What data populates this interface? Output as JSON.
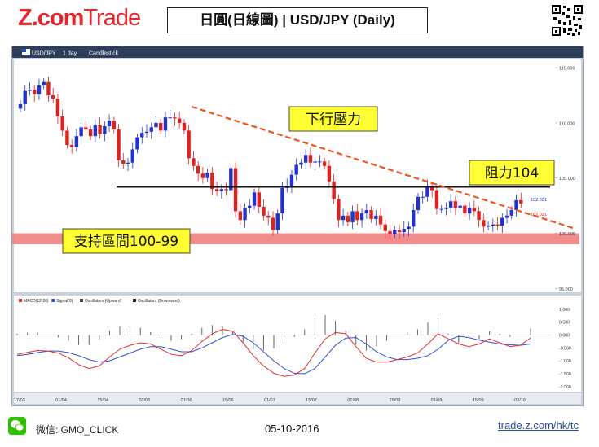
{
  "brand": {
    "logo_main": "Z.com",
    "logo_sub": "Trade"
  },
  "header": {
    "title": "日圓(日線圖) | USD/JPY (Daily)"
  },
  "toolbar": {
    "symbol": "USD/JPY",
    "interval": "1 day",
    "style": "Candlestick"
  },
  "footer": {
    "wechat": "微信: GMO_CLICK",
    "date": "05-10-2016",
    "url": "trade.z.com/hk/tc"
  },
  "colors": {
    "up": "#2233cc",
    "down": "#dd2222",
    "resistance_line": "#ee5522",
    "support_zone": "#f08080",
    "annotation_bg": "#ffff33",
    "macd": "#e03030",
    "signal": "#3050d0"
  },
  "chart_data": [
    {
      "type": "candlestick",
      "symbol": "USD/JPY",
      "ylim": [
        94.8,
        115.6
      ],
      "yticks": [
        "115.000",
        "110.000",
        "105.000",
        "100.000",
        "95.000"
      ],
      "xticks": [
        "17/03",
        "01/04",
        "15/04",
        "02/05",
        "01/06",
        "15/06",
        "01/07",
        "15/07",
        "01/08",
        "15/08",
        "01/09",
        "15/09",
        "03/10"
      ],
      "last_prices": [
        "102.831",
        "102.021"
      ],
      "annotations": [
        "下行壓力",
        "阻力104",
        "支持區間100-99"
      ],
      "resistance": 104.2,
      "support_zone": [
        99,
        100
      ],
      "closes": [
        111.7,
        112.9,
        113.0,
        112.6,
        113.4,
        113.7,
        112.5,
        112.2,
        110.6,
        109.3,
        108.0,
        107.8,
        108.8,
        109.6,
        109.4,
        108.8,
        109.8,
        109.0,
        109.7,
        110.2,
        109.4,
        106.6,
        106.3,
        106.4,
        107.6,
        108.7,
        109.1,
        109.2,
        109.6,
        110.0,
        109.3,
        110.5,
        110.5,
        110.4,
        110.0,
        109.3,
        106.8,
        106.1,
        105.4,
        105.0,
        105.5,
        104.0,
        103.8,
        104.0,
        103.9,
        105.9,
        102.0,
        101.2,
        102.3,
        102.5,
        103.7,
        102.4,
        101.6,
        101.4,
        100.3,
        101.8,
        104.1,
        104.3,
        105.3,
        106.2,
        106.4,
        107.1,
        106.4,
        106.5,
        106.5,
        106.1,
        104.7,
        103.1,
        101.2,
        101.6,
        101.0,
        102.0,
        101.2,
        101.8,
        102.1,
        101.3,
        101.6,
        100.8,
        100.2,
        99.9,
        100.3,
        100.1,
        100.4,
        100.6,
        102.1,
        103.3,
        103.3,
        104.2,
        103.9,
        102.2,
        102.2,
        102.3,
        102.9,
        102.3,
        102.5,
        101.8,
        102.3,
        102.0,
        101.2,
        100.6,
        100.7,
        100.8,
        100.7,
        101.4,
        101.6,
        102.1,
        103.0,
        102.7
      ]
    },
    {
      "type": "line",
      "title": "MACD",
      "legend": [
        "MACD(12,26)",
        "Signal(9)",
        "Oscillators (Upward)",
        "Oscillators (Downward)"
      ],
      "ylim": [
        -2.1,
        1.15
      ],
      "yticks": [
        "1.000",
        "0.500",
        "0.000",
        "-0.500",
        "-1.000",
        "-1.500",
        "-2.000"
      ],
      "series": [
        {
          "name": "MACD(12,26)",
          "values": [
            -0.75,
            -0.67,
            -0.6,
            -0.62,
            -0.7,
            -0.88,
            -1.15,
            -1.3,
            -1.2,
            -0.85,
            -0.55,
            -0.4,
            -0.3,
            -0.35,
            -0.55,
            -0.75,
            -0.8,
            -0.6,
            -0.25,
            0.05,
            0.22,
            0.15,
            -0.3,
            -0.8,
            -1.2,
            -1.48,
            -1.6,
            -1.55,
            -1.3,
            -0.7,
            -0.15,
            0.1,
            0.05,
            -0.45,
            -0.9,
            -1.05,
            -1.05,
            -0.95,
            -0.85,
            -0.7,
            -0.35,
            0.05,
            -0.15,
            -0.35,
            -0.45,
            -0.35,
            -0.15,
            -0.3,
            -0.45,
            -0.4,
            -0.12
          ]
        },
        {
          "name": "Signal(9)",
          "values": [
            -0.8,
            -0.75,
            -0.68,
            -0.62,
            -0.62,
            -0.68,
            -0.8,
            -0.95,
            -1.05,
            -1.0,
            -0.85,
            -0.7,
            -0.55,
            -0.45,
            -0.45,
            -0.55,
            -0.65,
            -0.65,
            -0.5,
            -0.3,
            -0.1,
            0.02,
            -0.05,
            -0.3,
            -0.65,
            -1.0,
            -1.3,
            -1.48,
            -1.5,
            -1.3,
            -0.85,
            -0.4,
            -0.12,
            -0.1,
            -0.35,
            -0.65,
            -0.85,
            -0.95,
            -0.95,
            -0.9,
            -0.8,
            -0.55,
            -0.2,
            -0.05,
            -0.1,
            -0.2,
            -0.28,
            -0.35,
            -0.38,
            -0.4,
            -0.35
          ]
        }
      ]
    }
  ]
}
